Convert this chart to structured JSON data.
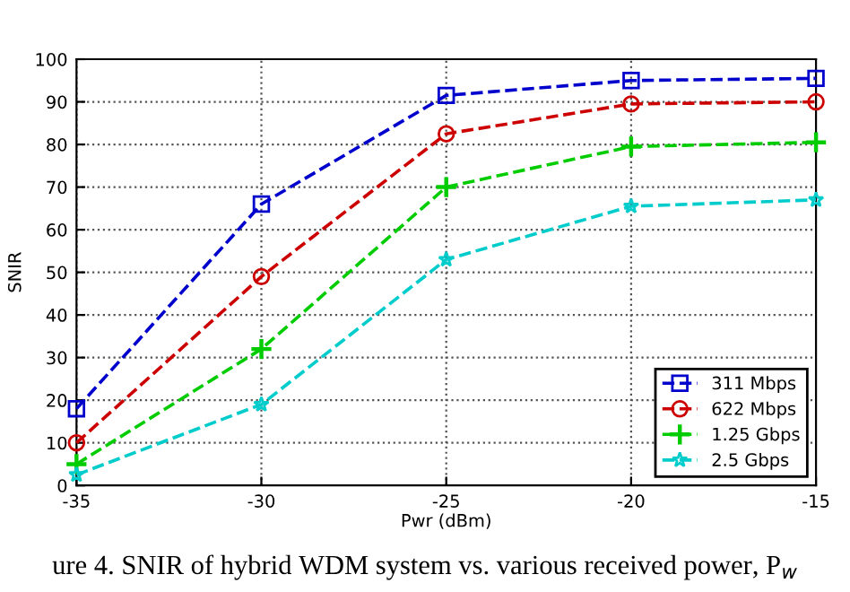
{
  "chart_data": {
    "type": "line",
    "xlabel": "Pwr (dBm)",
    "ylabel": "SNIR",
    "x": [
      -35,
      -30,
      -25,
      -20,
      -15
    ],
    "series": [
      {
        "name": "311 Mbps",
        "color": "#0000cc",
        "marker": "square",
        "values": [
          18,
          66,
          91.5,
          95,
          95.5
        ]
      },
      {
        "name": "622 Mbps",
        "color": "#cc0000",
        "marker": "circle",
        "values": [
          10,
          49,
          82.5,
          89.5,
          90
        ]
      },
      {
        "name": "1.25 Gbps",
        "color": "#00cc00",
        "marker": "cross",
        "values": [
          5,
          32,
          70,
          79.5,
          80.5
        ]
      },
      {
        "name": "2.5 Gbps",
        "color": "#00cccc",
        "marker": "star",
        "values": [
          2.5,
          19,
          53,
          65.5,
          67
        ]
      }
    ],
    "line_style": "dashed",
    "xlim": [
      -35,
      -15
    ],
    "xticks": [
      -35,
      -30,
      -25,
      -20,
      -15
    ],
    "ylim": [
      0,
      100
    ],
    "yticks": [
      0,
      10,
      20,
      30,
      40,
      50,
      60,
      70,
      80,
      90,
      100
    ],
    "grid": true,
    "legend": "bottom right",
    "annotations": [
      "ure 4. SNIR of hybrid WDM system vs. various received power, P$_{w}$"
    ]
  }
}
